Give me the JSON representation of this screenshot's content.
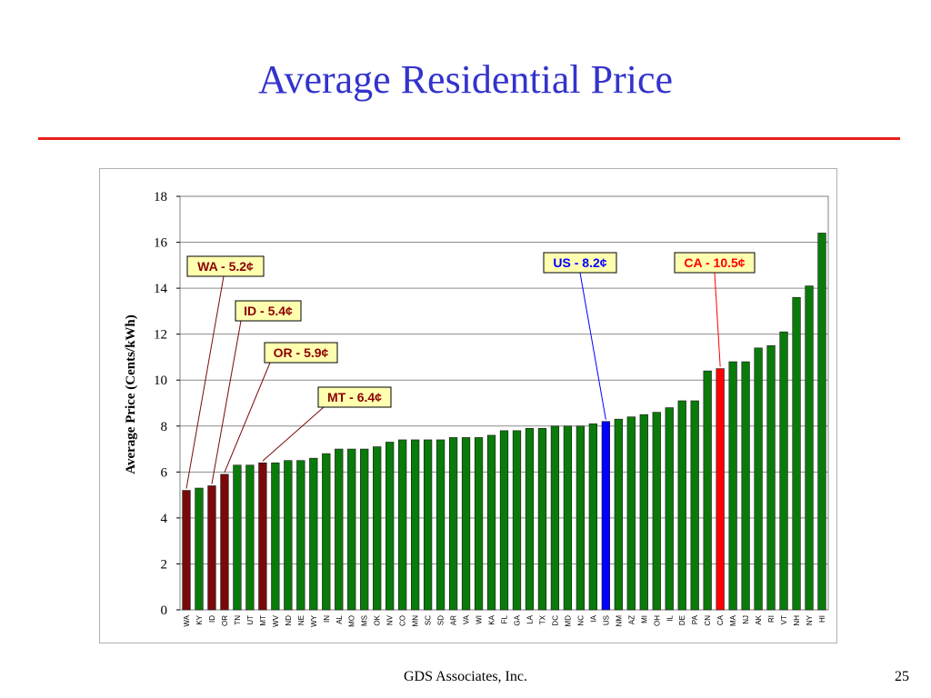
{
  "slide": {
    "title": "Average Residential Price",
    "footer_company": "GDS Associates, Inc.",
    "page_number": "25"
  },
  "colors": {
    "title": "#3333cc",
    "rule": "#e8201c",
    "bar_default": "#0a7a0a",
    "bar_northwest": "#7a0a0a",
    "bar_us": "#0000ff",
    "bar_ca": "#ff0000",
    "label_bg": "#ffffb0"
  },
  "chart_data": {
    "type": "bar",
    "title": "",
    "xlabel": "",
    "ylabel": "Average Price (Cents/kWh)",
    "ylim": [
      0,
      18
    ],
    "yticks": [
      0,
      2,
      4,
      6,
      8,
      10,
      12,
      14,
      16,
      18
    ],
    "grid": true,
    "categories": [
      "WA",
      "KY",
      "ID",
      "OR",
      "TN",
      "UT",
      "MT",
      "WV",
      "ND",
      "NE",
      "WY",
      "IN",
      "AL",
      "MO",
      "MS",
      "OK",
      "NV",
      "CO",
      "MN",
      "SC",
      "SD",
      "AR",
      "VA",
      "WI",
      "KA",
      "FL",
      "GA",
      "LA",
      "TX",
      "DC",
      "MD",
      "NC",
      "IA",
      "US",
      "NM",
      "AZ",
      "MI",
      "OH",
      "IL",
      "DE",
      "PA",
      "CN",
      "CA",
      "MA",
      "NJ",
      "AK",
      "RI",
      "VT",
      "NH",
      "NY",
      "HI"
    ],
    "values": [
      5.2,
      5.3,
      5.4,
      5.9,
      6.3,
      6.3,
      6.4,
      6.4,
      6.5,
      6.5,
      6.6,
      6.8,
      7.0,
      7.0,
      7.0,
      7.1,
      7.3,
      7.4,
      7.4,
      7.4,
      7.4,
      7.5,
      7.5,
      7.5,
      7.6,
      7.8,
      7.8,
      7.9,
      7.9,
      8.0,
      8.0,
      8.0,
      8.1,
      8.2,
      8.3,
      8.4,
      8.5,
      8.6,
      8.8,
      9.1,
      9.1,
      10.4,
      10.5,
      10.8,
      10.8,
      11.4,
      11.5,
      12.1,
      13.6,
      14.1,
      16.4
    ],
    "highlight_groups": {
      "northwest": [
        "WA",
        "ID",
        "OR",
        "MT"
      ],
      "us": [
        "US"
      ],
      "ca": [
        "CA"
      ]
    },
    "annotations": [
      {
        "category": "WA",
        "text": "WA - 5.2¢",
        "color": "#8b0000",
        "line_color": "#7a0a0a"
      },
      {
        "category": "ID",
        "text": "ID - 5.4¢",
        "color": "#8b0000",
        "line_color": "#7a0a0a"
      },
      {
        "category": "OR",
        "text": "OR - 5.9¢",
        "color": "#8b0000",
        "line_color": "#7a0a0a"
      },
      {
        "category": "MT",
        "text": "MT - 6.4¢",
        "color": "#8b0000",
        "line_color": "#7a0a0a"
      },
      {
        "category": "US",
        "text": "US - 8.2¢",
        "color": "#0000ff",
        "line_color": "#0000ff"
      },
      {
        "category": "CA",
        "text": "CA - 10.5¢",
        "color": "#ff0000",
        "line_color": "#ff0000"
      }
    ]
  }
}
